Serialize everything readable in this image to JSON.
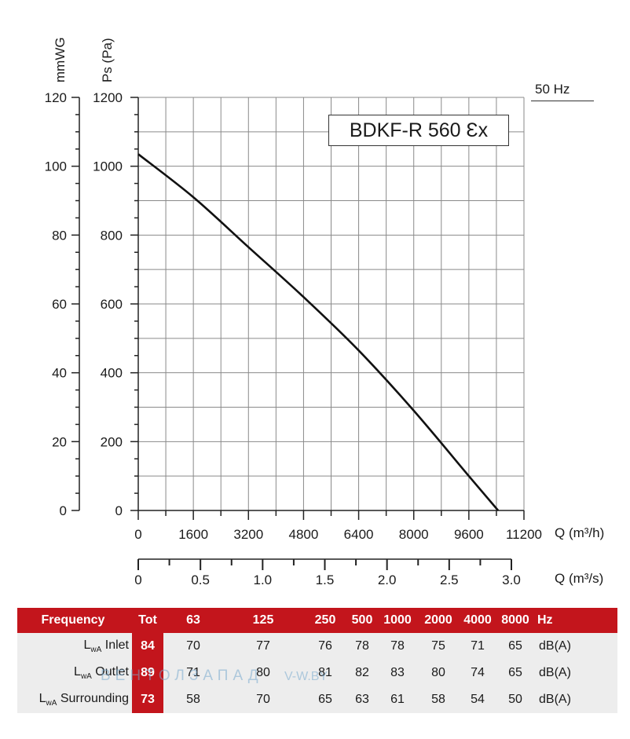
{
  "chart_data": {
    "type": "line",
    "title": "BDKF-R 560 Ɛx",
    "frequency_label": "50 Hz",
    "left_axis_label": "mmWG",
    "ylabel": "Ps (Pa)",
    "xlabel": "Q (m³/h)",
    "x2label": "Q (m³/s)",
    "xlim": [
      0,
      11200
    ],
    "ylim": [
      0,
      1200
    ],
    "x_ticks": [
      "0",
      "1600",
      "3200",
      "4800",
      "6400",
      "8000",
      "9600",
      "11200"
    ],
    "y_ticks": [
      "0",
      "200",
      "400",
      "600",
      "800",
      "1000",
      "1200"
    ],
    "mmwg_ticks": [
      "0",
      "20",
      "40",
      "60",
      "80",
      "100",
      "120"
    ],
    "x2_ticks": [
      "0",
      "0.5",
      "1.0",
      "1.5",
      "2.0",
      "2.5",
      "3.0"
    ],
    "grid": true,
    "series": [
      {
        "x": [
          0,
          1600,
          3200,
          4800,
          6400,
          8000,
          9600,
          10450
        ],
        "y": [
          1035,
          910,
          765,
          620,
          465,
          290,
          100,
          0
        ]
      }
    ]
  },
  "noise_table": {
    "header": [
      "Frequency",
      "Tot",
      "63",
      "125",
      "250",
      "500",
      "1000",
      "2000",
      "4000",
      "8000",
      "Hz"
    ],
    "rows": [
      {
        "label_main": "L",
        "label_sub": "wA",
        "label_rest": " Inlet",
        "tot": "84",
        "values": [
          "70",
          "77",
          "76",
          "78",
          "78",
          "75",
          "71",
          "65"
        ],
        "unit": "dB(A)"
      },
      {
        "label_main": "L",
        "label_sub": "wA",
        "label_rest": " Outlet",
        "tot": "89",
        "values": [
          "71",
          "80",
          "81",
          "82",
          "83",
          "80",
          "74",
          "65"
        ],
        "unit": "dB(A)"
      },
      {
        "label_main": "L",
        "label_sub": "wA",
        "label_rest": " Surrounding",
        "tot": "73",
        "values": [
          "58",
          "70",
          "65",
          "63",
          "61",
          "58",
          "54",
          "50"
        ],
        "unit": "dB(A)"
      }
    ]
  },
  "watermark": {
    "text1": "ВЕНТОЛЗАПАД",
    "text2": "V-W.BY"
  }
}
